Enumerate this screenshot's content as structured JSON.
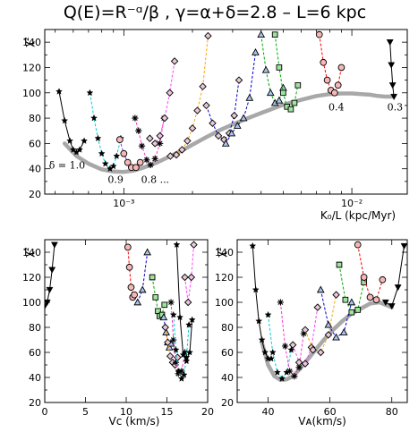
{
  "title": "Q(E)=R⁻ᵅ/β  ,  γ=α+δ=2.8  –  L=6 kpc",
  "chart_data": [
    {
      "type": "line",
      "panel": "top",
      "xlabel": "K₀/L (kpc/Myr)",
      "ylabel": "χ²",
      "xscale": "log",
      "xlim": [
        0.00045,
        0.0175
      ],
      "ylim": [
        20,
        150
      ],
      "yticks": [
        20,
        40,
        60,
        80,
        100,
        120,
        140
      ],
      "xtick_labels": [
        {
          "x": 0.001,
          "label": "10⁻³"
        },
        {
          "x": 0.01,
          "label": "10⁻²"
        }
      ],
      "annotations": [
        {
          "text": "δ = 1.0",
          "x": 0.00047,
          "y": 40
        },
        {
          "text": "0.9",
          "x": 0.00085,
          "y": 29
        },
        {
          "text": "0.8 ...",
          "x": 0.00119,
          "y": 29
        },
        {
          "text": "0.4",
          "x": 0.0079,
          "y": 86
        },
        {
          "text": "0.3",
          "x": 0.0143,
          "y": 86
        }
      ],
      "series": [
        {
          "marker": "star",
          "color": "#000000",
          "x": [
            0.00052,
            0.00055,
            0.00058,
            0.0006,
            0.00062,
            0.00064,
            0.00067
          ],
          "y": [
            101,
            78,
            62,
            55,
            53,
            55,
            62
          ]
        },
        {
          "marker": "star",
          "color": "#00cfd6",
          "x": [
            0.00071,
            0.00074,
            0.00077,
            0.0008,
            0.00083,
            0.00087,
            0.0009,
            0.00093,
            0.00097
          ],
          "y": [
            100,
            80,
            64,
            52,
            44,
            40,
            42,
            50,
            64
          ]
        },
        {
          "marker": "circle",
          "color": "#8a2be2",
          "x": [
            0.00096,
            0.001,
            0.00104,
            0.00108,
            0.00113,
            0.00118
          ],
          "y": [
            63,
            52,
            45,
            41,
            41,
            45
          ]
        },
        {
          "marker": "cross",
          "color": "#ff33cc",
          "x": [
            0.00112,
            0.00116,
            0.0012,
            0.00126,
            0.00131,
            0.00137,
            0.00144,
            0.0015
          ],
          "y": [
            80,
            70,
            58,
            47,
            43,
            48,
            60,
            80
          ]
        },
        {
          "marker": "diamond",
          "color": "#ff44ff",
          "x": [
            0.0013,
            0.00137,
            0.00144,
            0.00151,
            0.00159,
            0.00167
          ],
          "y": [
            64,
            60,
            66,
            80,
            100,
            125
          ]
        },
        {
          "marker": "diamond",
          "color": "#ffa500",
          "x": [
            0.0016,
            0.0017,
            0.0018,
            0.0019,
            0.002,
            0.0021,
            0.00222,
            0.00234
          ],
          "y": [
            50,
            51,
            55,
            62,
            72,
            86,
            105,
            145
          ]
        },
        {
          "marker": "diamond",
          "color": "#0000cc",
          "x": [
            0.0023,
            0.00245,
            0.0026,
            0.00275,
            0.0029,
            0.00305,
            0.0032
          ],
          "y": [
            90,
            76,
            66,
            63,
            68,
            82,
            110
          ]
        },
        {
          "marker": "triangle",
          "color": "#0000cc",
          "x": [
            0.0028,
            0.00297,
            0.00315,
            0.00335,
            0.00356,
            0.00378
          ],
          "y": [
            60,
            68,
            74,
            80,
            96,
            132
          ]
        },
        {
          "marker": "triangle",
          "color": "#00aa00",
          "x": [
            0.004,
            0.0042,
            0.0044,
            0.0046,
            0.0048,
            0.005
          ],
          "y": [
            146,
            118,
            100,
            92,
            94,
            104
          ]
        },
        {
          "marker": "square",
          "color": "#00aa00",
          "x": [
            0.0046,
            0.0048,
            0.005,
            0.0052,
            0.0054,
            0.0056,
            0.0058
          ],
          "y": [
            146,
            120,
            100,
            89,
            87,
            92,
            106
          ]
        },
        {
          "marker": "circle",
          "color": "#ff0000",
          "x": [
            0.0072,
            0.0075,
            0.0078,
            0.0081,
            0.0084,
            0.0087,
            0.009
          ],
          "y": [
            146,
            124,
            110,
            102,
            100,
            106,
            120
          ]
        },
        {
          "marker": "triangle-down",
          "color": "#000000",
          "x": [
            0.0147,
            0.0149,
            0.0151,
            0.0153
          ],
          "y": [
            140,
            122,
            106,
            97
          ]
        }
      ],
      "envelope": {
        "color": "#a8a8a8",
        "x": [
          0.00055,
          0.00062,
          0.0007,
          0.0008,
          0.0009,
          0.001,
          0.0011,
          0.0012,
          0.0014,
          0.0016,
          0.0018,
          0.002,
          0.0023,
          0.0026,
          0.003,
          0.0035,
          0.004,
          0.0045,
          0.005,
          0.006,
          0.007,
          0.008,
          0.009,
          0.01,
          0.011,
          0.012,
          0.013,
          0.014,
          0.015
        ],
        "y": [
          60,
          50,
          44,
          39.5,
          37.8,
          37.5,
          38.5,
          40.5,
          45,
          50,
          54.5,
          59,
          65,
          70,
          75,
          80,
          84,
          87.5,
          90.5,
          94.5,
          97.5,
          99,
          99.5,
          99.5,
          99,
          98.5,
          97.5,
          97,
          97
        ]
      }
    },
    {
      "type": "scatter",
      "panel": "bottom-left",
      "xlabel": "Vᴄ (km/s)",
      "ylabel": "χ²",
      "xlim": [
        0,
        20
      ],
      "ylim": [
        20,
        150
      ],
      "xticks": [
        0,
        5,
        10,
        15,
        20
      ],
      "yticks": [
        20,
        40,
        60,
        80,
        100,
        120,
        140
      ],
      "series": [
        {
          "marker": "triangle-down",
          "color": "#000000",
          "x": [
            0.0,
            0.3,
            0.6,
            0.9,
            1.2
          ],
          "y": [
            97,
            100,
            110,
            126,
            146
          ]
        },
        {
          "marker": "circle",
          "color": "#ff0000",
          "x": [
            10.2,
            10.4,
            10.6,
            10.8,
            11.0
          ],
          "y": [
            144,
            128,
            112,
            104,
            106
          ]
        },
        {
          "marker": "triangle",
          "color": "#0000cc",
          "x": [
            11.4,
            12.0,
            12.6
          ],
          "y": [
            100,
            110,
            140
          ]
        },
        {
          "marker": "square",
          "color": "#00aa00",
          "x": [
            13.2,
            13.6,
            13.9,
            14.1,
            14.4,
            14.7
          ],
          "y": [
            120,
            104,
            93,
            89,
            90,
            98
          ]
        },
        {
          "marker": "triangle",
          "color": "#0000cc",
          "x": [
            14.6,
            14.9,
            15.1,
            15.3,
            15.5
          ],
          "y": [
            88,
            76,
            68,
            64,
            67
          ]
        },
        {
          "marker": "diamond",
          "color": "#ffa500",
          "x": [
            14.8,
            15.1,
            15.4,
            15.7,
            16.0,
            16.3
          ],
          "y": [
            80,
            68,
            57,
            52,
            50,
            56
          ]
        },
        {
          "marker": "cross",
          "color": "#ff33cc",
          "x": [
            15.5,
            15.8,
            16.1,
            16.4,
            16.8,
            17.2
          ],
          "y": [
            100,
            70,
            52,
            43,
            45,
            60
          ]
        },
        {
          "marker": "star",
          "color": "#00cfd6",
          "x": [
            15.8,
            16.1,
            16.4,
            16.8,
            17.1,
            17.4,
            17.7
          ],
          "y": [
            90,
            62,
            45,
            39,
            42,
            56,
            82
          ]
        },
        {
          "marker": "star",
          "color": "#000000",
          "x": [
            16.2,
            16.6,
            17.0,
            17.4,
            17.8,
            18.1
          ],
          "y": [
            146,
            88,
            58,
            53,
            60,
            86
          ]
        },
        {
          "marker": "diamond",
          "color": "#ff44ff",
          "x": [
            17.2,
            17.6,
            18.0,
            18.3
          ],
          "y": [
            120,
            100,
            120,
            146
          ]
        }
      ]
    },
    {
      "type": "line",
      "panel": "bottom-right",
      "xlabel": "Vᴀ(km/s)",
      "ylabel": "χ²",
      "xlim": [
        30,
        85
      ],
      "ylim": [
        20,
        150
      ],
      "xticks": [
        40,
        60,
        80
      ],
      "yticks": [
        20,
        40,
        60,
        80,
        100,
        120,
        140
      ],
      "series": [
        {
          "marker": "star",
          "color": "#000000",
          "x": [
            35,
            36,
            37,
            38,
            39,
            40,
            41
          ],
          "y": [
            145,
            110,
            85,
            70,
            60,
            55,
            55
          ]
        },
        {
          "marker": "star",
          "color": "#00cfd6",
          "x": [
            40,
            41.5,
            43,
            44.5,
            46,
            47.5
          ],
          "y": [
            90,
            60,
            44,
            39,
            44,
            62
          ]
        },
        {
          "marker": "cross",
          "color": "#ff33cc",
          "x": [
            44,
            45.5,
            47,
            48.5,
            50,
            51.5
          ],
          "y": [
            100,
            65,
            45,
            41,
            48,
            75
          ]
        },
        {
          "marker": "diamond",
          "color": "#ff44ff",
          "x": [
            48,
            50,
            52,
            54,
            56
          ],
          "y": [
            66,
            52,
            51,
            64,
            96
          ]
        },
        {
          "marker": "diamond",
          "color": "#ffa500",
          "x": [
            52,
            54.5,
            57,
            59.5,
            62
          ],
          "y": [
            78,
            62,
            60,
            74,
            106
          ]
        },
        {
          "marker": "triangle",
          "color": "#0000cc",
          "x": [
            57,
            59.5,
            62,
            64.5,
            67
          ],
          "y": [
            110,
            82,
            72,
            76,
            100
          ]
        },
        {
          "marker": "square",
          "color": "#00aa00",
          "x": [
            63,
            65,
            67,
            69,
            71
          ],
          "y": [
            130,
            102,
            92,
            94,
            116
          ]
        },
        {
          "marker": "circle",
          "color": "#ff0000",
          "x": [
            69,
            71,
            73,
            75,
            77
          ],
          "y": [
            146,
            120,
            104,
            102,
            118
          ]
        },
        {
          "marker": "triangle-down",
          "color": "#000000",
          "x": [
            78,
            80,
            82,
            84
          ],
          "y": [
            100,
            97,
            112,
            145
          ]
        }
      ],
      "envelope": {
        "color": "#a8a8a8",
        "x": [
          38,
          40,
          42,
          44,
          46,
          48,
          50,
          52,
          55,
          58,
          61,
          64,
          67,
          70,
          73,
          76,
          78,
          80
        ],
        "y": [
          68,
          50,
          41,
          38,
          38.5,
          41,
          46,
          52,
          61,
          70,
          78,
          85,
          91,
          95,
          99,
          100,
          98,
          96
        ]
      }
    }
  ]
}
